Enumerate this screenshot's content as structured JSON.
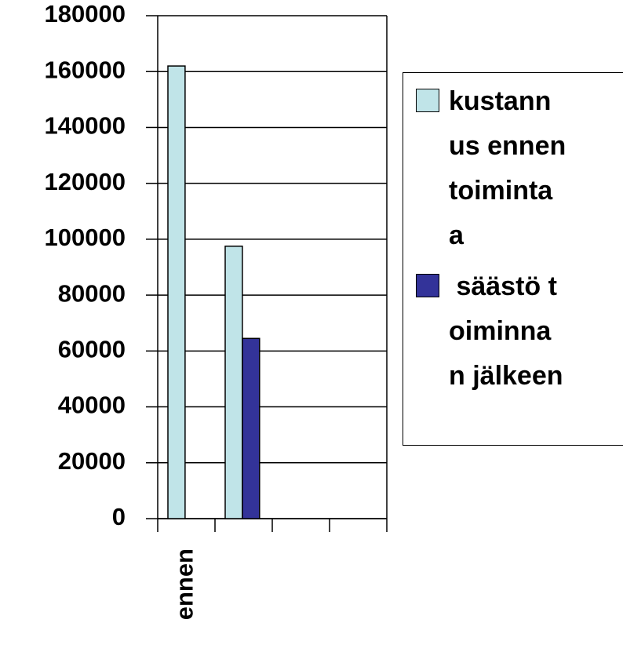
{
  "chart_data": {
    "type": "bar",
    "categories": [
      "ennen",
      null,
      null,
      null
    ],
    "series": [
      {
        "name": "kustannus ennen toimintaa",
        "color": "#c0e4e8",
        "values": [
          162000,
          97500,
          null,
          null
        ]
      },
      {
        "name": " säästö toiminnan jälkeen",
        "color": "#333399",
        "values": [
          null,
          64500,
          null,
          null
        ]
      }
    ],
    "ylim": [
      0,
      180000
    ],
    "yticks": [
      0,
      20000,
      40000,
      60000,
      80000,
      100000,
      120000,
      140000,
      160000,
      180000
    ],
    "grid": true,
    "legend": "right"
  }
}
